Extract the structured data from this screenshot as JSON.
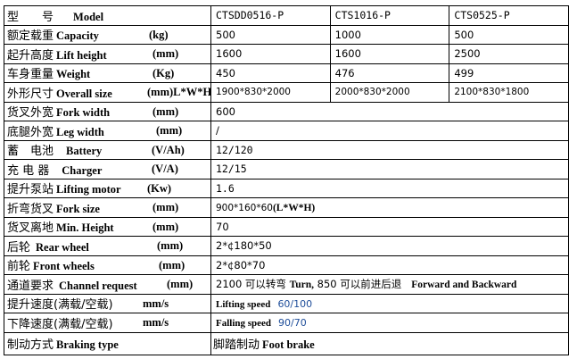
{
  "header": {
    "cn": "型　　号",
    "en": "Model",
    "models": [
      "CTSDD0516-P",
      "CTS1016-P",
      "CTS0525-P"
    ]
  },
  "rows": [
    {
      "cn": "额定载重",
      "en": "Capacity",
      "unit": "(kg)",
      "values": [
        "500",
        "1000",
        "500"
      ]
    },
    {
      "cn": "起升高度",
      "en": "Lift height",
      "unit": "(mm)",
      "values": [
        "1600",
        "1600",
        "2500"
      ]
    },
    {
      "cn": "车身重量",
      "en": "Weight",
      "unit": "(Kg)",
      "values": [
        "450",
        "476",
        "499"
      ]
    },
    {
      "cn": "外形尺寸",
      "en": "Overall size",
      "unit": "(mm)L*W*H",
      "values": [
        "1900*830*2000",
        "2000*830*2000",
        "2100*830*1800"
      ]
    },
    {
      "cn": "货叉外宽",
      "en": "Fork width",
      "unit": "(mm)",
      "value": "600"
    },
    {
      "cn": "底腿外宽",
      "en": "Leg width",
      "unit": "(mm)",
      "value": "/"
    },
    {
      "cn": "蓄　电池",
      "en": "Battery",
      "unit": "(V/Ah)",
      "value": "12/120"
    },
    {
      "cn": "充 电 器",
      "en": "Charger",
      "unit": "(V/A)",
      "value": "12/15"
    },
    {
      "cn": "提升泵站",
      "en": "Lifting motor",
      "unit": "(Kw)",
      "value": "1.6"
    },
    {
      "cn": "折弯货叉",
      "en": "Fork size",
      "unit": "(mm)",
      "value": "900*160*60",
      "value_suffix": "(L*W*H)"
    },
    {
      "cn": "货叉离地",
      "en": "Min. Height",
      "unit": "(mm)",
      "value": "70"
    },
    {
      "cn": "后轮",
      "en": "Rear wheel",
      "unit": "(mm)",
      "value": "2*¢180*50"
    },
    {
      "cn": "前轮",
      "en": "Front wheels",
      "unit": "(mm)",
      "value": "2*¢80*70"
    },
    {
      "cn": "通道要求",
      "en": "Channel request",
      "unit": "(mm)",
      "value_parts": [
        "2100 可以转弯",
        "Turn,",
        "850 可以前进后退",
        "Forward and Backward"
      ]
    },
    {
      "cn": "提升速度(满载/空载)",
      "en": "",
      "unit": "mm/s",
      "value_label": "Lifting speed",
      "value": "60/100"
    },
    {
      "cn": "下降速度(满载/空载)",
      "en": "",
      "unit": "mm/s",
      "value_label": "Falling speed",
      "value": "90/70"
    },
    {
      "cn": "制动方式",
      "en": "Braking type",
      "unit": "",
      "value_cn": "脚踏制动",
      "value_en": "Foot brake"
    }
  ],
  "colors": {
    "speed_value": "#1f4e9a",
    "border": "#000000"
  }
}
